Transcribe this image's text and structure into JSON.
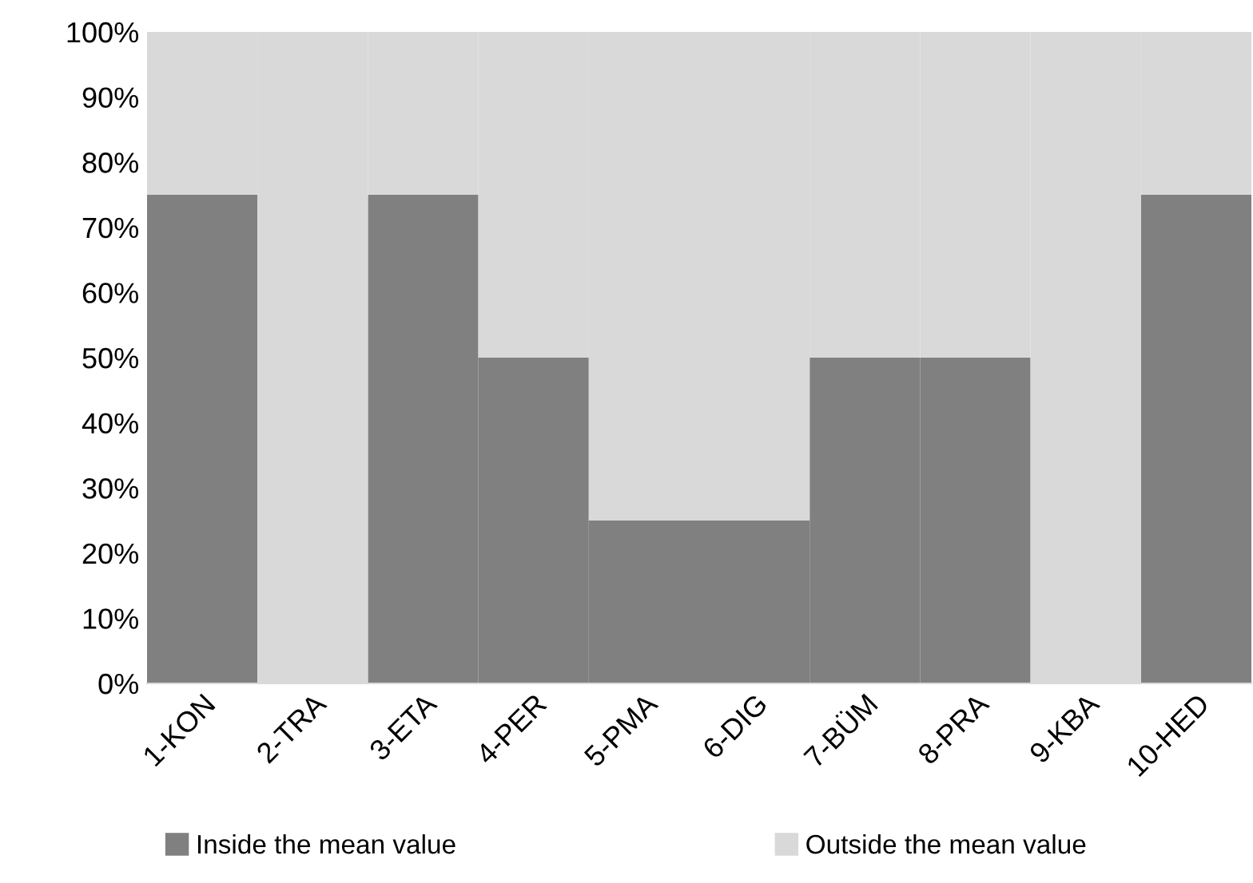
{
  "chart_data": {
    "type": "bar",
    "stacked": true,
    "categories": [
      "1-KON",
      "2-TRA",
      "3-ETA",
      "4-PER",
      "5-PMA",
      "6-DIG",
      "7-BÜM",
      "8-PRA",
      "9-KBA",
      "10-HED"
    ],
    "series": [
      {
        "name": "Inside the mean value",
        "color": "#808080",
        "values": [
          75,
          0,
          75,
          50,
          25,
          25,
          50,
          50,
          0,
          75
        ]
      },
      {
        "name": "Outside the mean value",
        "color": "#d9d9d9",
        "values": [
          25,
          100,
          25,
          50,
          75,
          75,
          50,
          50,
          100,
          25
        ]
      }
    ],
    "ylim": [
      0,
      100
    ],
    "yticks": [
      {
        "value": 0,
        "label": "0%"
      },
      {
        "value": 10,
        "label": "10%"
      },
      {
        "value": 20,
        "label": "20%"
      },
      {
        "value": 30,
        "label": "30%"
      },
      {
        "value": 40,
        "label": "40%"
      },
      {
        "value": 50,
        "label": "50%"
      },
      {
        "value": 60,
        "label": "60%"
      },
      {
        "value": 70,
        "label": "70%"
      },
      {
        "value": 80,
        "label": "80%"
      },
      {
        "value": 90,
        "label": "90%"
      },
      {
        "value": 100,
        "label": "100%"
      }
    ],
    "grid": false,
    "legend": "bottom"
  }
}
